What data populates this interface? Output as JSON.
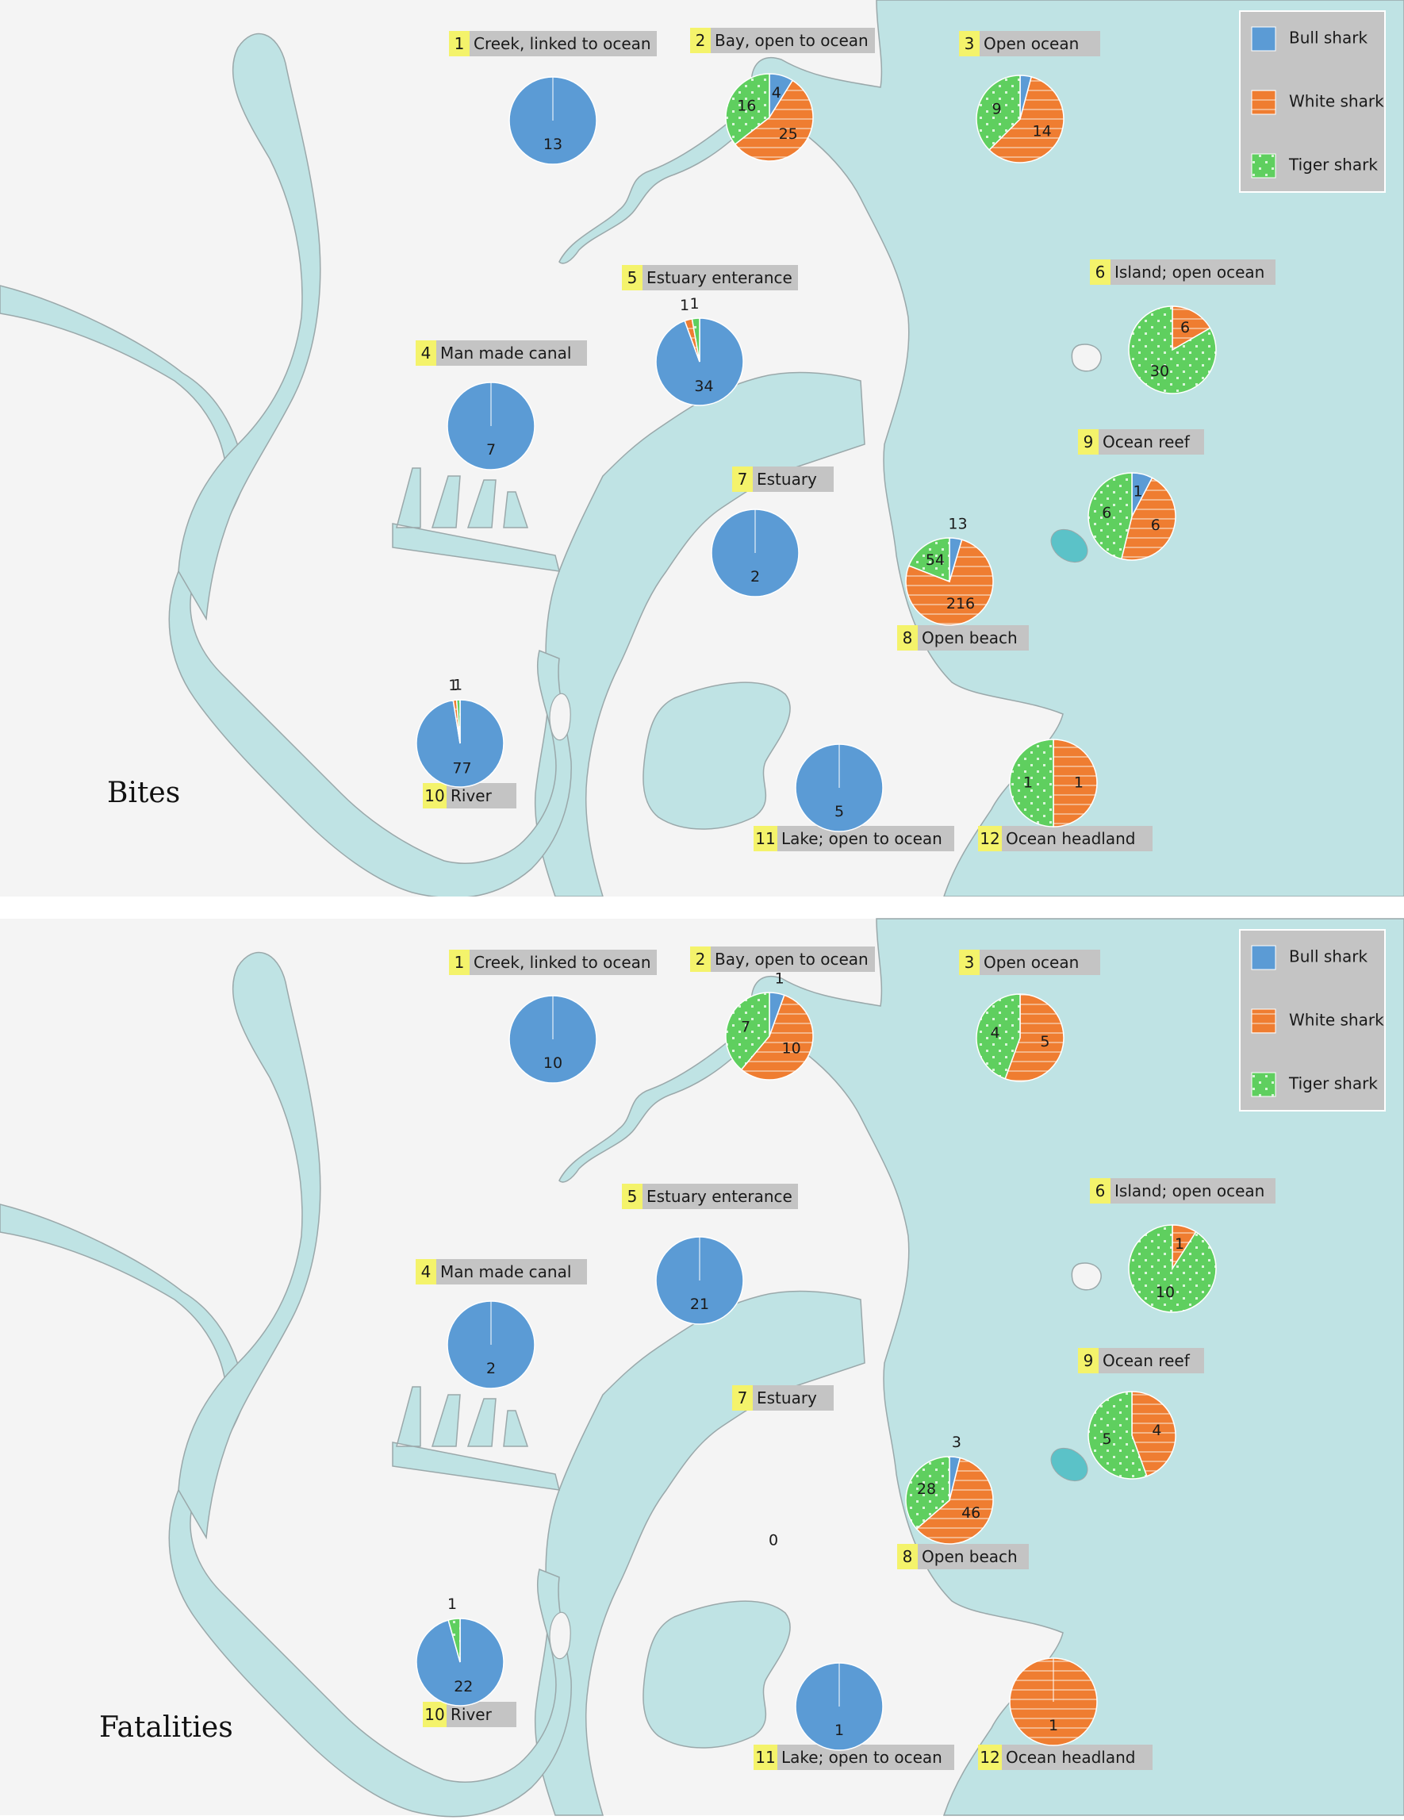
{
  "colors": {
    "bull": "#5b9bd5",
    "white": "#ef7d31",
    "tiger": "#5fcf5f",
    "water": "#bfe3e4",
    "land": "#f4f4f4",
    "reef": "#5bc2c8"
  },
  "legend": [
    {
      "key": "bull",
      "label": "Bull shark",
      "pattern": "solid"
    },
    {
      "key": "white",
      "label": "White shark",
      "pattern": "stripes"
    },
    {
      "key": "tiger",
      "label": "Tiger shark",
      "pattern": "dots"
    }
  ],
  "locations": [
    {
      "num": "1",
      "name": "Creek, linked to ocean"
    },
    {
      "num": "2",
      "name": "Bay, open to ocean"
    },
    {
      "num": "3",
      "name": "Open ocean"
    },
    {
      "num": "4",
      "name": "Man made canal"
    },
    {
      "num": "5",
      "name": "Estuary enterance"
    },
    {
      "num": "6",
      "name": "Island; open ocean"
    },
    {
      "num": "7",
      "name": "Estuary"
    },
    {
      "num": "8",
      "name": "Open beach"
    },
    {
      "num": "9",
      "name": "Ocean reef"
    },
    {
      "num": "10",
      "name": "River"
    },
    {
      "num": "11",
      "name": "Lake; open to ocean"
    },
    {
      "num": "12",
      "name": "Ocean headland"
    }
  ],
  "chart_data": [
    {
      "type": "pie",
      "title": "Bites",
      "series_keys": [
        "bull",
        "white",
        "tiger"
      ],
      "pies": [
        {
          "location": "1",
          "bull": 13,
          "white": 0,
          "tiger": 0
        },
        {
          "location": "2",
          "bull": 4,
          "white": 25,
          "tiger": 16
        },
        {
          "location": "3",
          "bull": 1,
          "white": 14,
          "tiger": 9,
          "printed_labels": [
            "",
            "14",
            "9"
          ]
        },
        {
          "location": "4",
          "bull": 7,
          "white": 0,
          "tiger": 0
        },
        {
          "location": "5",
          "bull": 34,
          "white": 1,
          "tiger": 1
        },
        {
          "location": "6",
          "bull": 0,
          "white": 6,
          "tiger": 30
        },
        {
          "location": "7",
          "bull": 2,
          "white": 0,
          "tiger": 0
        },
        {
          "location": "8",
          "bull": 13,
          "white": 216,
          "tiger": 54
        },
        {
          "location": "9",
          "bull": 1,
          "white": 6,
          "tiger": 6
        },
        {
          "location": "10",
          "bull": 77,
          "white": 1,
          "tiger": 1
        },
        {
          "location": "11",
          "bull": 5,
          "white": 0,
          "tiger": 0
        },
        {
          "location": "12",
          "bull": 0,
          "white": 1,
          "tiger": 1
        }
      ]
    },
    {
      "type": "pie",
      "title": "Fatalities",
      "series_keys": [
        "bull",
        "white",
        "tiger"
      ],
      "pies": [
        {
          "location": "1",
          "bull": 10,
          "white": 0,
          "tiger": 0
        },
        {
          "location": "2",
          "bull": 1,
          "white": 10,
          "tiger": 7
        },
        {
          "location": "3",
          "bull": 0,
          "white": 5,
          "tiger": 4
        },
        {
          "location": "4",
          "bull": 2,
          "white": 0,
          "tiger": 0
        },
        {
          "location": "5",
          "bull": 21,
          "white": 0,
          "tiger": 0
        },
        {
          "location": "6",
          "bull": 0,
          "white": 1,
          "tiger": 10
        },
        {
          "location": "7",
          "bull": 0,
          "white": 0,
          "tiger": 0,
          "zero_label": "0"
        },
        {
          "location": "8",
          "bull": 3,
          "white": 46,
          "tiger": 28
        },
        {
          "location": "9",
          "bull": 0,
          "white": 4,
          "tiger": 5
        },
        {
          "location": "10",
          "bull": 22,
          "white": 0,
          "tiger": 1
        },
        {
          "location": "11",
          "bull": 1,
          "white": 0,
          "tiger": 0
        },
        {
          "location": "12",
          "bull": 0,
          "white": 1,
          "tiger": 0
        }
      ]
    }
  ]
}
